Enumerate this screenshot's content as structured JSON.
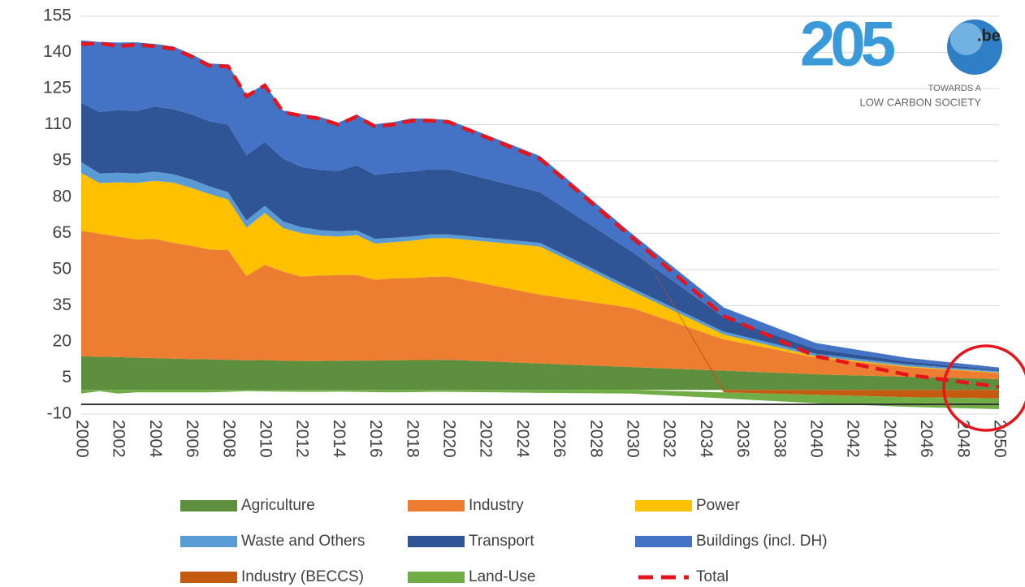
{
  "chart_data": {
    "type": "stacked-area",
    "x": [
      2000,
      2001,
      2002,
      2003,
      2004,
      2005,
      2006,
      2007,
      2008,
      2009,
      2010,
      2011,
      2012,
      2013,
      2014,
      2015,
      2016,
      2017,
      2018,
      2019,
      2020,
      2025,
      2030,
      2035,
      2040,
      2045,
      2050
    ],
    "xlim": [
      2000,
      2050
    ],
    "xticks": [
      2000,
      2002,
      2004,
      2006,
      2008,
      2010,
      2012,
      2014,
      2016,
      2018,
      2020,
      2022,
      2024,
      2026,
      2028,
      2030,
      2032,
      2034,
      2036,
      2038,
      2040,
      2042,
      2044,
      2046,
      2048,
      2050
    ],
    "ylim": [
      -10,
      155
    ],
    "yticks": [
      -10,
      5,
      20,
      35,
      50,
      65,
      80,
      95,
      110,
      125,
      140,
      155
    ],
    "grid": true,
    "series": [
      {
        "name": "Agriculture",
        "color": "#5e8f3e",
        "values": [
          14,
          13.8,
          13.6,
          13.4,
          13.2,
          13,
          12.8,
          12.7,
          12.5,
          12.3,
          12.4,
          12.1,
          12,
          12,
          12.1,
          12.2,
          12.2,
          12.3,
          12.4,
          12.4,
          12.5,
          11,
          9.5,
          8,
          6.5,
          5.5,
          4.5
        ]
      },
      {
        "name": "Industry",
        "color": "#ed7d31",
        "values": [
          52,
          51,
          50,
          49,
          49.5,
          48,
          47,
          45.5,
          45.5,
          35,
          39.5,
          37,
          35,
          35.5,
          35.5,
          35.5,
          33.5,
          34,
          34,
          34.5,
          34.5,
          28.5,
          24.5,
          13,
          7,
          4,
          2.5
        ]
      },
      {
        "name": "Power",
        "color": "#ffc000",
        "values": [
          24,
          21,
          22.5,
          23.5,
          24,
          25,
          24,
          23,
          21,
          20,
          21.5,
          18,
          18,
          16.5,
          16,
          16.5,
          15,
          15,
          15.5,
          16,
          16,
          20,
          7,
          2,
          0.5,
          0.3,
          0.2
        ]
      },
      {
        "name": "Waste and Others",
        "color": "#5b9bd5",
        "values": [
          4.5,
          4,
          4,
          3.8,
          3.8,
          3.5,
          3.5,
          3.2,
          3,
          3,
          3,
          2.8,
          2.5,
          2.3,
          2.2,
          2,
          2,
          1.8,
          1.7,
          1.6,
          1.5,
          1.5,
          1.3,
          1.2,
          1,
          0.8,
          0.6
        ]
      },
      {
        "name": "Transport",
        "color": "#2f5597",
        "values": [
          24.5,
          25.5,
          26,
          26,
          27,
          27,
          27,
          27,
          28,
          27,
          26.5,
          26,
          25,
          25,
          25,
          27,
          26.5,
          27,
          27,
          27,
          27,
          21,
          15,
          6,
          2,
          1.2,
          0.5
        ]
      },
      {
        "name": "Buildings (incl. DH)",
        "color": "#4472c4",
        "values": [
          26,
          29,
          28,
          28.5,
          26,
          26,
          25,
          24,
          25,
          25,
          24,
          20,
          22,
          22,
          20,
          21,
          21,
          21,
          22,
          21,
          20.5,
          15,
          7.5,
          4,
          2.5,
          1.5,
          1
        ]
      },
      {
        "name": "Industry (BECCS)",
        "color": "#c55a11",
        "values": [
          0,
          0,
          0,
          0,
          0,
          0,
          0,
          0,
          0,
          0,
          0,
          0,
          0,
          0,
          0,
          0,
          0,
          0,
          0,
          0,
          0,
          0,
          0,
          -1,
          -2,
          -3,
          -3.5
        ]
      },
      {
        "name": "Land-Use",
        "color": "#70ad47",
        "values": [
          -1.5,
          -0.5,
          -1.5,
          -1,
          -1,
          -1,
          -1,
          -1,
          -0.8,
          -0.5,
          -0.6,
          -0.7,
          -0.8,
          -0.8,
          -0.7,
          -0.8,
          -0.9,
          -1,
          -0.9,
          -0.8,
          -0.8,
          -1.2,
          -1.5,
          -2.5,
          -3.5,
          -4,
          -4.5
        ]
      },
      {
        "name": "Total",
        "color": "#e8141c",
        "line": true,
        "values": [
          143.5,
          143.8,
          142.6,
          143.2,
          142.5,
          141.5,
          138.3,
          134.4,
          134.2,
          121.8,
          126.3,
          115.2,
          113.7,
          112.5,
          110.1,
          113.4,
          109.3,
          110.1,
          111.7,
          111.7,
          111.2,
          95.8,
          63.3,
          30.7,
          14,
          6.3,
          1.3
        ]
      }
    ],
    "logo": {
      "title": "205",
      "suffix": ".be",
      "line1": "TOWARDS A",
      "line2": "LOW CARBON SOCIETY"
    }
  }
}
